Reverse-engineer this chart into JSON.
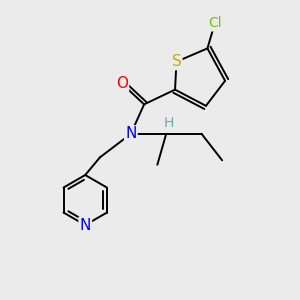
{
  "background_color": "#ebebeb",
  "atom_colors": {
    "C": "#000000",
    "H": "#6aacac",
    "N": "#0000ff",
    "O": "#ff0000",
    "S": "#ccaa00",
    "Cl": "#66cc00"
  },
  "bond_color": "#000000",
  "bond_width": 1.4,
  "font_size": 10,
  "figsize": [
    3.0,
    3.0
  ],
  "dpi": 100
}
